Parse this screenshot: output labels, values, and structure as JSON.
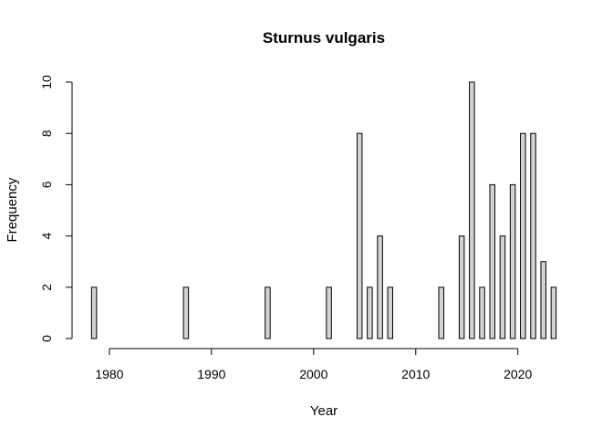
{
  "chart_data": {
    "type": "bar",
    "title": "Sturnus vulgaris",
    "xlabel": "Year",
    "ylabel": "Frequency",
    "x": [
      1978,
      1979,
      1980,
      1981,
      1982,
      1983,
      1984,
      1985,
      1986,
      1987,
      1988,
      1989,
      1990,
      1991,
      1992,
      1993,
      1994,
      1995,
      1996,
      1997,
      1998,
      1999,
      2000,
      2001,
      2002,
      2003,
      2004,
      2005,
      2006,
      2007,
      2008,
      2009,
      2010,
      2011,
      2012,
      2013,
      2014,
      2015,
      2016,
      2017,
      2018,
      2019,
      2020,
      2021,
      2022,
      2023
    ],
    "values": [
      2,
      0,
      0,
      0,
      0,
      0,
      0,
      0,
      0,
      2,
      0,
      0,
      0,
      0,
      0,
      0,
      0,
      2,
      0,
      0,
      0,
      0,
      0,
      2,
      0,
      0,
      8,
      2,
      4,
      2,
      0,
      0,
      0,
      0,
      2,
      0,
      4,
      10,
      2,
      6,
      4,
      6,
      8,
      8,
      3,
      2
    ],
    "xlim": [
      1978,
      2023
    ],
    "ylim": [
      0,
      10
    ],
    "x_ticks": [
      "1980",
      "1990",
      "2000",
      "2010",
      "2020"
    ],
    "y_ticks": [
      "0",
      "2",
      "4",
      "6",
      "8",
      "10"
    ],
    "bar_fill": "#d3d3d3",
    "bar_stroke": "#000000",
    "grid": false,
    "legend": false
  }
}
